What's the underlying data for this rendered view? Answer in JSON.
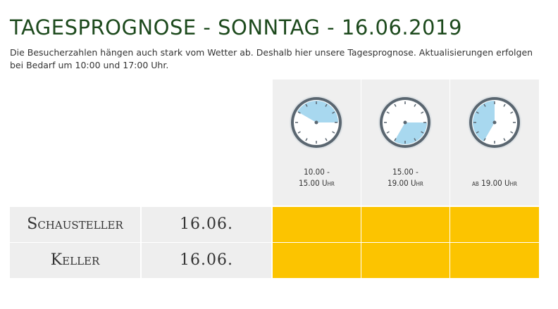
{
  "page": {
    "title": "TAGESPROGNOSE - SONNTAG - 16.06.2019",
    "intro": "Die Besucherzahlen hängen auch stark vom Wetter ab. Deshalb hier unsere Tagesprognose. Aktualisierungen erfolgen bei Bedarf um 10:00 und 17:00 Uhr."
  },
  "slots": [
    {
      "label_line1": "10.00 -",
      "label_line2": "15.00 Uhr",
      "icon": "clock-icon",
      "from_hour": 10,
      "to_hour": 15
    },
    {
      "label_line1": "15.00 -",
      "label_line2": "19.00 Uhr",
      "icon": "clock-icon",
      "from_hour": 15,
      "to_hour": 19
    },
    {
      "label_line1": "",
      "label_line2": "ab 19.00 Uhr",
      "icon": "clock-icon",
      "from_hour": 19,
      "to_hour": 24
    }
  ],
  "rows": [
    {
      "name": "Schausteller",
      "date": "16.06."
    },
    {
      "name": "Keller",
      "date": "16.06."
    }
  ],
  "colors": {
    "title": "#1d4a1d",
    "forecast": "#fcc400",
    "clock_fill": "#a8d8ef",
    "clock_rim": "#5a6670",
    "cell_bg": "#eeeeee"
  }
}
